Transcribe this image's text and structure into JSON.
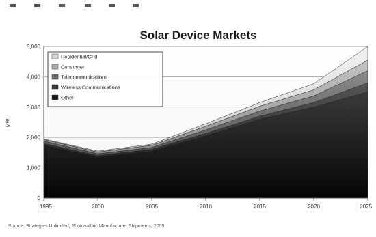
{
  "chart_data": {
    "type": "area",
    "stacked": true,
    "title": "Solar Device Markets",
    "xlabel": "",
    "ylabel": "MW",
    "x": [
      "1995",
      "2000",
      "2005",
      "2010",
      "2015",
      "2020",
      "2025"
    ],
    "ylim": [
      0,
      5000
    ],
    "yticks": [
      0,
      1000,
      2000,
      3000,
      4000,
      5000
    ],
    "grid": true,
    "legend_position": "top-left",
    "series": [
      {
        "name": "Other",
        "values": [
          1750,
          1350,
          1550,
          2050,
          2600,
          3000,
          3500
        ],
        "color": "#141414"
      },
      {
        "name": "Wireless Communications",
        "values": [
          50,
          50,
          60,
          80,
          100,
          150,
          300
        ],
        "color": "#3a3a3a"
      },
      {
        "name": "Telecommunications",
        "values": [
          80,
          60,
          60,
          120,
          170,
          220,
          400
        ],
        "color": "#6b6b6b"
      },
      {
        "name": "Consumer",
        "values": [
          50,
          60,
          70,
          120,
          160,
          200,
          350
        ],
        "color": "#a8a8a8"
      },
      {
        "name": "Residential/Grid",
        "values": [
          20,
          30,
          40,
          80,
          120,
          200,
          450
        ],
        "color": "#dcdcdc"
      }
    ],
    "source": "Source: Strategies Unlimited, Photovoltaic Manufacturer Shipments, 2005"
  },
  "colors": {
    "background": "#ffffff",
    "gridline": "#9a9a9a",
    "axis": "#555555"
  }
}
